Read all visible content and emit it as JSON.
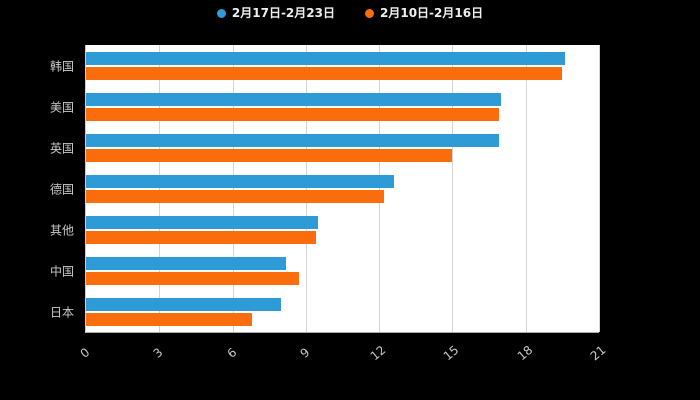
{
  "chart_data": {
    "type": "bar",
    "orientation": "horizontal",
    "title": "",
    "categories": [
      "韩国",
      "美国",
      "英国",
      "德国",
      "其他",
      "中国",
      "日本"
    ],
    "series": [
      {
        "name": "2月17日-2月23日",
        "color": "#2f9bd6",
        "values": [
          19.6,
          17.0,
          16.9,
          12.6,
          9.5,
          8.2,
          8.0
        ]
      },
      {
        "name": "2月10日-2月16日",
        "color": "#fa6d0d",
        "values": [
          19.5,
          16.9,
          15.0,
          12.2,
          9.4,
          8.7,
          6.8
        ]
      }
    ],
    "xlim": [
      0,
      21
    ],
    "xticks": [
      0,
      3,
      6,
      9,
      12,
      15,
      18,
      21
    ],
    "grid": true,
    "legend_position": "top"
  },
  "colors": {
    "background": "#000000",
    "plot_background": "#ffffff",
    "gridline": "#d4d4d4",
    "axis_label": "#c9c9c9"
  }
}
